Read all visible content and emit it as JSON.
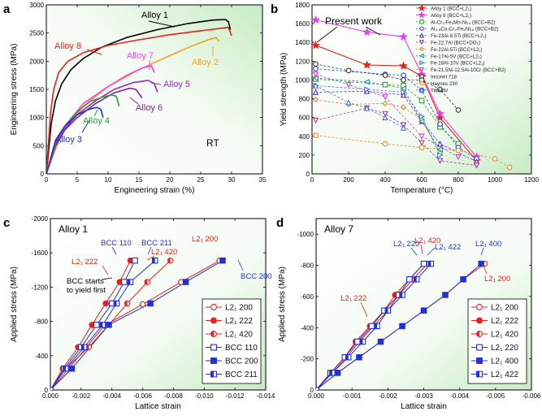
{
  "chart_data": [
    {
      "panel": "a",
      "type": "line",
      "xlabel": "Engineering strain (%)",
      "ylabel": "Engineering stress (MPa)",
      "xlim": [
        0,
        35
      ],
      "ylim": [
        0,
        3000
      ],
      "xticks": [
        0,
        5,
        10,
        15,
        20,
        25,
        30,
        35
      ],
      "yticks": [
        0,
        500,
        1000,
        1500,
        2000,
        2500,
        3000
      ],
      "annotation": "RT",
      "series": [
        {
          "name": "Alloy 1",
          "color": "#000000",
          "x": [
            0,
            0.8,
            1.5,
            2.5,
            4,
            6,
            9,
            13,
            18,
            23,
            27,
            29,
            29.5,
            29.8
          ],
          "y": [
            0,
            900,
            1300,
            1600,
            1850,
            2050,
            2250,
            2420,
            2560,
            2670,
            2730,
            2740,
            2700,
            2560
          ]
        },
        {
          "name": "Alloy 8",
          "color": "#e8201a",
          "x": [
            0,
            0.7,
            1.2,
            2,
            3.5,
            6,
            10,
            15,
            20,
            25,
            28,
            29.5,
            30
          ],
          "y": [
            0,
            1100,
            1500,
            1800,
            2000,
            2150,
            2280,
            2380,
            2470,
            2540,
            2580,
            2600,
            2450
          ]
        },
        {
          "name": "Alloy 2",
          "color": "#f5a11c",
          "x": [
            0,
            1.5,
            3,
            6,
            10,
            15,
            20,
            24,
            26.5,
            27.5,
            28
          ],
          "y": [
            0,
            450,
            800,
            1200,
            1550,
            1850,
            2100,
            2290,
            2390,
            2420,
            2350
          ]
        },
        {
          "name": "Alloy 7",
          "color": "#ff3de8",
          "x": [
            0,
            1.5,
            3,
            6,
            10,
            13,
            15.5,
            17,
            17.5
          ],
          "y": [
            0,
            500,
            850,
            1250,
            1550,
            1750,
            1880,
            1920,
            1800
          ]
        },
        {
          "name": "Alloy 5",
          "color": "#9b27c9",
          "x": [
            0,
            1.5,
            3,
            5,
            8,
            11,
            14,
            16.5,
            17.5,
            18
          ],
          "y": [
            0,
            500,
            800,
            1050,
            1300,
            1500,
            1620,
            1660,
            1600,
            1450
          ]
        },
        {
          "name": "Alloy 6",
          "color": "#8a2090",
          "x": [
            0,
            1.5,
            3,
            5,
            8,
            11,
            13.5,
            14.5,
            15.5
          ],
          "y": [
            0,
            500,
            780,
            1000,
            1250,
            1440,
            1520,
            1500,
            1350
          ]
        },
        {
          "name": "Alloy 4",
          "color": "#2e9b3a",
          "x": [
            0,
            1.5,
            3,
            5,
            7,
            9,
            10.5,
            11.3,
            11.8
          ],
          "y": [
            0,
            550,
            850,
            1100,
            1280,
            1360,
            1400,
            1380,
            1200
          ]
        },
        {
          "name": "Alloy 3",
          "color": "#2230d6",
          "x": [
            0,
            1.5,
            3,
            5,
            7,
            8.2,
            8.8,
            9.2
          ],
          "y": [
            0,
            600,
            850,
            1050,
            1150,
            1180,
            1150,
            1000
          ]
        }
      ]
    },
    {
      "panel": "b",
      "type": "line",
      "xlabel": "Temperature (°C)",
      "ylabel": "Yield strength (MPa)",
      "xlim": [
        0,
        1200
      ],
      "ylim": [
        0,
        1800
      ],
      "xticks": [
        0,
        200,
        400,
        600,
        800,
        1000,
        1200
      ],
      "yticks": [
        0,
        200,
        400,
        600,
        800,
        1000,
        1200,
        1400,
        1600,
        1800
      ],
      "annotation": "Present work",
      "series": [
        {
          "name": "Alloy 1 (BCC+L2₁)",
          "color": "#e8201a",
          "marker": "star",
          "dashed": false,
          "x": [
            20,
            300,
            500,
            600,
            700,
            900
          ],
          "y": [
            1370,
            1160,
            1150,
            1040,
            600,
            140
          ]
        },
        {
          "name": "Alloy 8 (BCC+L2₁)",
          "color": "#e83ee6",
          "marker": "star",
          "dashed": false,
          "x": [
            20,
            300,
            500,
            600,
            700,
            900
          ],
          "y": [
            1640,
            1510,
            1460,
            1060,
            640,
            180
          ]
        },
        {
          "name": "Al₇Cr₁₇Fe₈Mn₇Ni₁₄ (BCC+B2)",
          "color": "#3a9a3a",
          "marker": "square",
          "dashed": true,
          "x": [
            20,
            400,
            500,
            600,
            700,
            800
          ],
          "y": [
            1010,
            950,
            940,
            780,
            500,
            320
          ]
        },
        {
          "name": "Al₀.₅Co₇Cr₁₇Fe₈Ni₁₈ (BCC+B2)",
          "color": "#2e4ad0",
          "marker": "circle",
          "dashed": true,
          "x": [
            20,
            400,
            500,
            600,
            700,
            800,
            900
          ],
          "y": [
            1120,
            1060,
            1050,
            890,
            530,
            280,
            160
          ]
        },
        {
          "name": "Fe-23Al-8.5Ti (BCC+L2₁)",
          "color": "#5a2ad0",
          "marker": "triangle-up",
          "dashed": true,
          "x": [
            20,
            300,
            500,
            600,
            700,
            900
          ],
          "y": [
            870,
            880,
            840,
            560,
            320,
            130
          ]
        },
        {
          "name": "Fe-22.7Al (BCC+DO₃)",
          "color": "#9a3a9a",
          "marker": "triangle-down",
          "dashed": true,
          "x": [
            20,
            300,
            400,
            500,
            600,
            700,
            900
          ],
          "y": [
            570,
            700,
            640,
            520,
            330,
            140,
            90
          ]
        },
        {
          "name": "Fe-22Al-5Ti (BCC+L2₁)",
          "color": "#c98a20",
          "marker": "diamond",
          "dashed": true,
          "x": [
            20,
            200,
            400,
            500,
            600,
            700
          ],
          "y": [
            790,
            740,
            750,
            710,
            580,
            220
          ]
        },
        {
          "name": "Fe-17Al-5V (BCC+L2₁)",
          "color": "#2a8a9a",
          "marker": "triangle-left",
          "dashed": true,
          "x": [
            20,
            300,
            500,
            600,
            700
          ],
          "y": [
            1020,
            980,
            910,
            560,
            260
          ]
        },
        {
          "name": "Fe-18Al-10V (BCC+L2₁)",
          "color": "#3a7ad0",
          "marker": "triangle-right",
          "dashed": true,
          "x": [
            20,
            300,
            500,
            600,
            700
          ],
          "y": [
            940,
            900,
            870,
            610,
            200
          ]
        },
        {
          "name": "Fe-21.5Ni-12.5Al-10Cr (BCC+B2)",
          "color": "#d040d0",
          "marker": "triangle-down",
          "dashed": true,
          "x": [
            20,
            200,
            400,
            600,
            800
          ],
          "y": [
            1060,
            950,
            820,
            400,
            180
          ]
        },
        {
          "name": "Inconel 718",
          "color": "#333333",
          "marker": "circle",
          "dashed": true,
          "x": [
            20,
            200,
            400,
            500,
            600,
            700,
            800
          ],
          "y": [
            1170,
            1100,
            1050,
            1000,
            1000,
            900,
            680
          ]
        },
        {
          "name": "Haynes 230",
          "color": "#e88a30",
          "marker": "circle",
          "dashed": true,
          "x": [
            20,
            400,
            600,
            800,
            1000,
            1080
          ],
          "y": [
            410,
            320,
            280,
            250,
            160,
            70
          ]
        },
        {
          "name": "Ti6Al4V",
          "color": "#4a6ae0",
          "marker": "triangle-up",
          "dashed": true,
          "x": [
            20,
            200,
            300,
            400,
            500
          ],
          "y": [
            940,
            760,
            700,
            600,
            490
          ]
        }
      ]
    },
    {
      "panel": "c",
      "type": "line",
      "title": "Alloy 1",
      "xlabel": "Lattice strain",
      "ylabel": "Applied stress (MPa)",
      "xlim": [
        0,
        -0.014
      ],
      "ylim": [
        0,
        -2000
      ],
      "xticks": [
        0,
        -0.002,
        -0.004,
        -0.006,
        -0.008,
        -0.01,
        -0.012,
        -0.014
      ],
      "xticklabels": [
        "0.000",
        "-0.002",
        "-0.004",
        "-0.006",
        "-0.008",
        "-0.010",
        "-0.012",
        "-0.014"
      ],
      "yticks": [
        0,
        -400,
        -800,
        -1200,
        -1600,
        -2000
      ],
      "annotation": "BCC starts to yield first",
      "series": [
        {
          "name": "L2₁ 200",
          "color": "#e8201a",
          "marker": "circle-open",
          "x": [
            0,
            -0.0012,
            -0.0035,
            -0.006,
            -0.0085,
            -0.011
          ],
          "y": [
            0,
            -250,
            -750,
            -1000,
            -1260,
            -1510
          ]
        },
        {
          "name": "L2₁ 222",
          "color": "#e8201a",
          "marker": "circle-fill",
          "x": [
            0,
            -0.0008,
            -0.0018,
            -0.0027,
            -0.0036,
            -0.0045,
            -0.0052
          ],
          "y": [
            0,
            -250,
            -500,
            -760,
            -1010,
            -1260,
            -1510
          ]
        },
        {
          "name": "L2₁ 420",
          "color": "#e8201a",
          "marker": "circle-half",
          "x": [
            0,
            -0.001,
            -0.0025,
            -0.0038,
            -0.005,
            -0.0063,
            -0.0078
          ],
          "y": [
            0,
            -250,
            -500,
            -760,
            -1010,
            -1260,
            -1510
          ]
        },
        {
          "name": "BCC 110",
          "color": "#2230d6",
          "marker": "square-open",
          "x": [
            0,
            -0.0009,
            -0.002,
            -0.003,
            -0.004,
            -0.0048,
            -0.0055
          ],
          "y": [
            0,
            -250,
            -500,
            -760,
            -1010,
            -1260,
            -1510
          ]
        },
        {
          "name": "BCC 200",
          "color": "#2230d6",
          "marker": "square-fill",
          "x": [
            0,
            -0.0014,
            -0.0038,
            -0.0065,
            -0.0088,
            -0.0112
          ],
          "y": [
            0,
            -250,
            -760,
            -1010,
            -1260,
            -1510
          ]
        },
        {
          "name": "BCC 211",
          "color": "#2230d6",
          "marker": "square-half",
          "x": [
            0,
            -0.001,
            -0.0022,
            -0.0034,
            -0.0043,
            -0.0052,
            -0.0068
          ],
          "y": [
            0,
            -250,
            -500,
            -760,
            -1010,
            -1260,
            -1510
          ]
        }
      ],
      "point_labels": [
        {
          "text": "L2₁ 200",
          "color": "#e8201a"
        },
        {
          "text": "L2₁ 222",
          "color": "#e8201a"
        },
        {
          "text": "L2₁ 420",
          "color": "#e8201a"
        },
        {
          "text": "BCC 110",
          "color": "#2230d6"
        },
        {
          "text": "BCC 211",
          "color": "#2230d6"
        },
        {
          "text": "BCC 200",
          "color": "#2230d6"
        }
      ]
    },
    {
      "panel": "d",
      "type": "line",
      "title": "Alloy 7",
      "xlabel": "Lattice strain",
      "ylabel": "Applied stress (MPa)",
      "xlim": [
        0,
        -0.006
      ],
      "ylim": [
        0,
        -1100
      ],
      "xticks": [
        0,
        -0.001,
        -0.002,
        -0.003,
        -0.004,
        -0.005,
        -0.006
      ],
      "xticklabels": [
        "0.000",
        "-0.001",
        "-0.002",
        "-0.003",
        "-0.004",
        "-0.005",
        "-0.006"
      ],
      "yticks": [
        0,
        -200,
        -400,
        -600,
        -800,
        -1000
      ],
      "series": [
        {
          "name": "L2₁ 200",
          "color": "#e8201a",
          "marker": "circle-open",
          "x": [
            0,
            -0.0006,
            -0.0012,
            -0.0018,
            -0.0024,
            -0.003,
            -0.0036,
            -0.0041,
            -0.0047
          ],
          "y": [
            0,
            -110,
            -210,
            -310,
            -410,
            -510,
            -610,
            -710,
            -810
          ]
        },
        {
          "name": "L2₁ 222",
          "color": "#e8201a",
          "marker": "circle-fill",
          "x": [
            0,
            -0.0004,
            -0.0008,
            -0.0011,
            -0.0015,
            -0.0019,
            -0.0022,
            -0.0026,
            -0.003
          ],
          "y": [
            0,
            -110,
            -210,
            -310,
            -410,
            -510,
            -610,
            -710,
            -810
          ]
        },
        {
          "name": "L2₁ 420",
          "color": "#e8201a",
          "marker": "circle-half",
          "x": [
            0,
            -0.00045,
            -0.00085,
            -0.0012,
            -0.0016,
            -0.002,
            -0.0023,
            -0.0027,
            -0.0031
          ],
          "y": [
            0,
            -110,
            -210,
            -310,
            -410,
            -510,
            -610,
            -710,
            -810
          ]
        },
        {
          "name": "L2₁ 220",
          "color": "#2230d6",
          "marker": "square-open",
          "x": [
            0,
            -0.0004,
            -0.0008,
            -0.00115,
            -0.00155,
            -0.0019,
            -0.0023,
            -0.0026,
            -0.003
          ],
          "y": [
            0,
            -110,
            -210,
            -310,
            -410,
            -510,
            -610,
            -710,
            -810
          ]
        },
        {
          "name": "L2₁ 400",
          "color": "#2230d6",
          "marker": "square-fill",
          "x": [
            0,
            -0.0006,
            -0.0012,
            -0.0018,
            -0.0024,
            -0.003,
            -0.0036,
            -0.0041,
            -0.0046
          ],
          "y": [
            0,
            -110,
            -210,
            -310,
            -410,
            -510,
            -610,
            -710,
            -810
          ]
        },
        {
          "name": "L2₁ 422",
          "color": "#2230d6",
          "marker": "square-half",
          "x": [
            0,
            -0.00045,
            -0.0009,
            -0.0013,
            -0.0017,
            -0.002,
            -0.0024,
            -0.0028,
            -0.0032
          ],
          "y": [
            0,
            -110,
            -210,
            -310,
            -410,
            -510,
            -610,
            -710,
            -810
          ]
        }
      ],
      "point_labels": [
        {
          "text": "L2₁ 220",
          "color": "#2230d6"
        },
        {
          "text": "L2₁ 420",
          "color": "#e8201a"
        },
        {
          "text": "L2₁ 422",
          "color": "#2230d6"
        },
        {
          "text": "L2₁ 400",
          "color": "#2230d6"
        },
        {
          "text": "L2₁ 200",
          "color": "#e8201a"
        },
        {
          "text": "L2₁ 222",
          "color": "#e8201a"
        }
      ]
    }
  ],
  "panel_letters": [
    "a",
    "b",
    "c",
    "d"
  ]
}
